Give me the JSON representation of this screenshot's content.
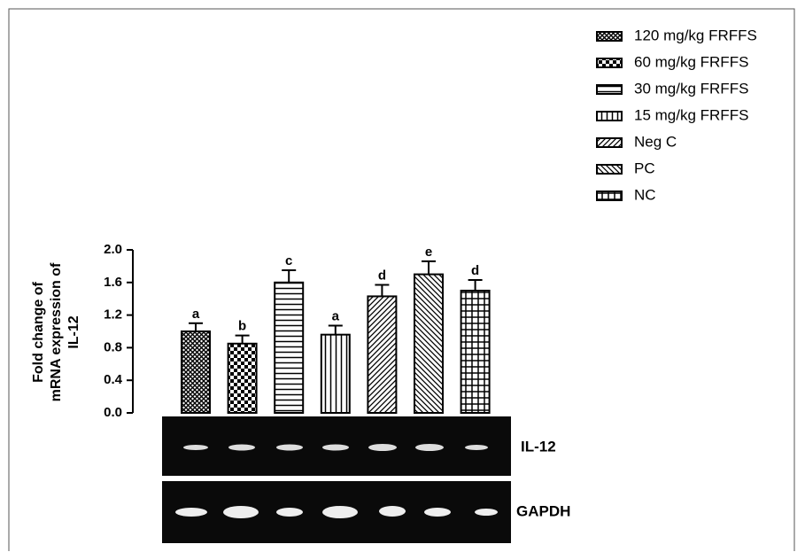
{
  "chart_data": {
    "type": "bar",
    "ylabel": [
      "Fold change of",
      "mRNA expression of",
      "IL-12"
    ],
    "ylim": [
      0,
      2
    ],
    "yticks": [
      {
        "value": 0,
        "label": "0.0"
      },
      {
        "value": 0.4,
        "label": "0.4"
      },
      {
        "value": 0.8,
        "label": "0.8"
      },
      {
        "value": 1.2,
        "label": "1.2"
      },
      {
        "value": 1.6,
        "label": "1.6"
      },
      {
        "value": 2,
        "label": "2.0"
      }
    ],
    "series": [
      {
        "name": "120 mg/kg FRFFS",
        "color": "#000000",
        "values": [
          1.0
        ],
        "errors": [
          0.1
        ],
        "annotation": "a"
      },
      {
        "name": "60 mg/kg FRFFS",
        "color": "#000000",
        "values": [
          0.85
        ],
        "errors": [
          0.1
        ],
        "annotation": "b"
      },
      {
        "name": "30 mg/kg FRFFS",
        "color": "#000000",
        "values": [
          1.6
        ],
        "errors": [
          0.15
        ],
        "annotation": "c"
      },
      {
        "name": "15 mg/kg FRFFS",
        "color": "#000000",
        "values": [
          0.96
        ],
        "errors": [
          0.11
        ],
        "annotation": "a"
      },
      {
        "name": "Neg C",
        "color": "#000000",
        "values": [
          1.43
        ],
        "errors": [
          0.14
        ],
        "annotation": "d"
      },
      {
        "name": "PC",
        "color": "#000000",
        "values": [
          1.7
        ],
        "errors": [
          0.16
        ],
        "annotation": "e"
      },
      {
        "name": "NC",
        "color": "#000000",
        "values": [
          1.5
        ],
        "errors": [
          0.13
        ],
        "annotation": "d"
      }
    ],
    "blot_labels": [
      "IL-12",
      "GAPDH"
    ]
  }
}
